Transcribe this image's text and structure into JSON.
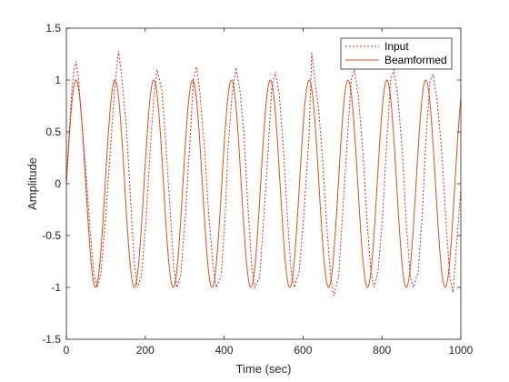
{
  "chart_data": {
    "type": "line",
    "xlabel": "Time (sec)",
    "ylabel": "Amplitude",
    "xlim": [
      0,
      1000
    ],
    "ylim": [
      -1.5,
      1.5
    ],
    "x_ticks": [
      0,
      200,
      400,
      600,
      800,
      1000
    ],
    "y_ticks": [
      -1.5,
      -1,
      -0.5,
      0,
      0.5,
      1,
      1.5
    ],
    "x_tick_labels": [
      "0",
      "200",
      "400",
      "600",
      "800",
      "1000"
    ],
    "y_tick_labels": [
      "-1.5",
      "-1",
      "-0.5",
      "0",
      "0.5",
      "1",
      "1.5"
    ],
    "grid": false,
    "legend_position": "top-right",
    "series": [
      {
        "name": "Input",
        "color": "#d62728",
        "style": "dotted",
        "x": [
          0,
          14,
          19,
          25,
          31,
          39,
          50,
          60,
          70,
          78,
          88,
          100,
          112,
          122,
          132,
          140,
          152,
          162,
          172,
          180,
          190,
          202,
          212,
          222,
          230,
          242,
          252,
          262,
          272,
          280,
          290,
          302,
          314,
          322,
          330,
          338,
          350,
          360,
          372,
          380,
          392,
          402,
          410,
          420,
          430,
          440,
          450,
          460,
          470,
          478,
          490,
          500,
          512,
          520,
          530,
          540,
          550,
          560,
          570,
          578,
          590,
          602,
          615,
          622,
          630,
          640,
          650,
          660,
          670,
          678,
          690,
          700,
          712,
          722,
          730,
          740,
          752,
          762,
          772,
          780,
          790,
          802,
          812,
          822,
          830,
          840,
          852,
          862,
          872,
          880,
          892,
          902,
          912,
          922,
          930,
          940,
          952,
          962,
          972,
          980,
          990,
          1000
        ],
        "y": [
          0.05,
          0.9,
          1.1,
          1.18,
          1.0,
          0.6,
          0.1,
          -0.45,
          -0.88,
          -1.0,
          -0.85,
          -0.3,
          0.35,
          0.9,
          1.28,
          1.05,
          0.55,
          -0.1,
          -0.75,
          -1.0,
          -0.9,
          -0.35,
          0.3,
          0.85,
          1.1,
          0.9,
          0.4,
          -0.2,
          -0.8,
          -1.0,
          -0.88,
          -0.3,
          0.45,
          1.0,
          1.13,
          0.9,
          0.35,
          -0.25,
          -0.8,
          -1.0,
          -0.9,
          -0.35,
          0.35,
          0.85,
          1.12,
          0.9,
          0.5,
          -0.2,
          -0.8,
          -1.0,
          -0.9,
          -0.35,
          0.35,
          0.9,
          1.08,
          0.85,
          0.35,
          -0.3,
          -0.85,
          -1.0,
          -0.85,
          -0.3,
          0.45,
          1.26,
          1.0,
          0.7,
          0.2,
          -0.4,
          -0.9,
          -1.08,
          -0.9,
          -0.3,
          0.4,
          1.0,
          1.1,
          0.85,
          0.3,
          -0.35,
          -0.85,
          -1.0,
          -0.85,
          -0.3,
          0.4,
          1.0,
          1.1,
          0.85,
          0.3,
          -0.4,
          -0.9,
          -1.0,
          -0.85,
          -0.3,
          0.45,
          1.0,
          1.05,
          0.8,
          0.3,
          -0.35,
          -0.9,
          -1.05,
          -0.55,
          -0.05
        ]
      },
      {
        "name": "Beamformed",
        "color": "#d95319",
        "style": "solid",
        "amplitude": 1.0,
        "period": 98.5,
        "phase_deg": 0
      }
    ]
  }
}
